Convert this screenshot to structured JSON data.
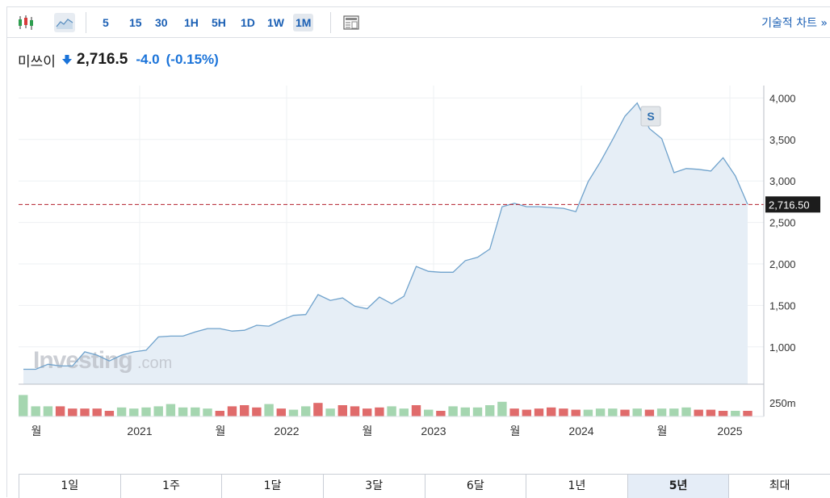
{
  "toolbar": {
    "icons": [
      "candlestick-chart-icon",
      "area-chart-icon",
      "layout-icon"
    ],
    "intervals": [
      "5",
      "15",
      "30",
      "1H",
      "5H",
      "1D",
      "1W",
      "1M"
    ],
    "active_interval": "1M",
    "technical_chart_link": "기술적 차트 »"
  },
  "header": {
    "instrument": "미쓰이",
    "direction_icon": "arrow-down-icon",
    "price": "2,716.5",
    "change": "-4.0",
    "change_pct": "(-0.15%)",
    "change_color": "#1a73d9"
  },
  "watermark": {
    "brand": "Investing",
    "suffix": ".com"
  },
  "chart_data": {
    "type": "area",
    "series": [
      {
        "values": [
          730,
          730,
          790,
          770,
          770,
          940,
          900,
          830,
          900,
          940,
          960,
          1120,
          1130,
          1130,
          1180,
          1220,
          1220,
          1190,
          1200,
          1260,
          1250,
          1320,
          1380,
          1390,
          1630,
          1560,
          1590,
          1490,
          1460,
          1600,
          1520,
          1610,
          1970,
          1910,
          1900,
          1900,
          2040,
          2080,
          2180,
          2690,
          2730,
          2690,
          2690,
          2680,
          2670,
          2630,
          2990,
          3230,
          3500,
          3780,
          3940,
          3630,
          3510,
          3100,
          3150,
          3140,
          3120,
          3280,
          3060,
          2716.5
        ]
      }
    ],
    "x_tick_labels": [
      "월",
      "2021",
      "월",
      "2022",
      "월",
      "2023",
      "월",
      "2024",
      "월",
      "2025"
    ],
    "y_tick_labels": [
      "1,000",
      "1,500",
      "2,000",
      "2,500",
      "3,000",
      "3,500",
      "4,000"
    ],
    "ylim": [
      550,
      4150
    ],
    "current_price_label": "2,716.50",
    "event_marker": "S",
    "line_color": "#6fa2cc",
    "area_color": "#e6eef6",
    "reference_line_color": "#b21f2d",
    "volume": {
      "label": "250m",
      "up_color": "#a5d6b0",
      "down_color": "#e06b6b",
      "directions": [
        "up",
        "up",
        "up",
        "down",
        "down",
        "down",
        "down",
        "down",
        "up",
        "up",
        "up",
        "up",
        "up",
        "up",
        "up",
        "up",
        "down",
        "down",
        "down",
        "down",
        "up",
        "down",
        "up",
        "up",
        "down",
        "up",
        "down",
        "down",
        "down",
        "down",
        "up",
        "up",
        "down",
        "up",
        "down",
        "up",
        "up",
        "up",
        "up",
        "up",
        "down",
        "down",
        "down",
        "down",
        "down",
        "down",
        "up",
        "up",
        "up",
        "down",
        "up",
        "down",
        "up",
        "up",
        "up",
        "down",
        "down",
        "down",
        "up",
        "down"
      ],
      "heights": [
        0.95,
        0.45,
        0.45,
        0.45,
        0.35,
        0.35,
        0.35,
        0.25,
        0.4,
        0.35,
        0.4,
        0.45,
        0.55,
        0.4,
        0.4,
        0.35,
        0.25,
        0.45,
        0.5,
        0.4,
        0.55,
        0.35,
        0.3,
        0.45,
        0.6,
        0.35,
        0.5,
        0.45,
        0.35,
        0.4,
        0.45,
        0.35,
        0.5,
        0.3,
        0.25,
        0.45,
        0.4,
        0.4,
        0.5,
        0.65,
        0.35,
        0.3,
        0.35,
        0.4,
        0.35,
        0.3,
        0.3,
        0.35,
        0.35,
        0.3,
        0.35,
        0.3,
        0.35,
        0.35,
        0.4,
        0.3,
        0.3,
        0.25,
        0.25,
        0.25
      ]
    }
  },
  "range_tabs": [
    "1일",
    "1주",
    "1달",
    "3달",
    "6달",
    "1년",
    "5년",
    "최대"
  ],
  "active_range": "5년"
}
